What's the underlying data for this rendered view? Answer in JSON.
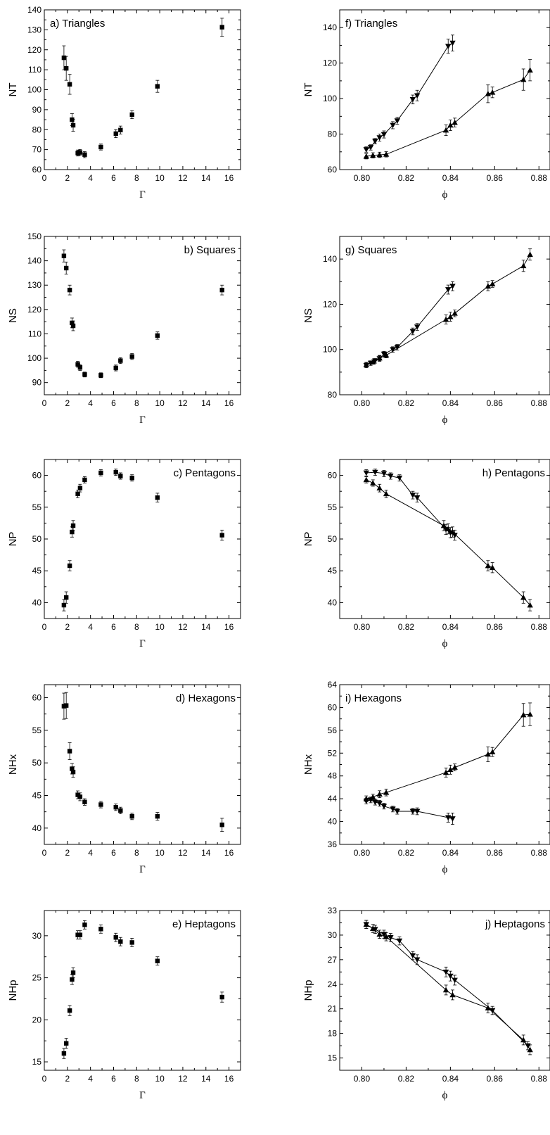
{
  "chart_data": [
    {
      "id": "a",
      "type": "scatter",
      "title": "a) Triangles",
      "xlabel": "Γ",
      "ylabel": "NT",
      "xlim": [
        0,
        17
      ],
      "ylim": [
        60,
        140
      ],
      "xticks": [
        0,
        2,
        4,
        6,
        8,
        10,
        12,
        14,
        16
      ],
      "yticks": [
        60,
        70,
        80,
        90,
        100,
        110,
        120,
        130,
        140
      ],
      "title_pos": "top-left",
      "marker": "square",
      "series": [
        {
          "x": [
            1.7,
            1.9,
            2.2,
            2.4,
            2.5,
            2.9,
            3.1,
            3.5,
            4.9,
            6.2,
            6.6,
            7.6,
            9.8,
            15.4
          ],
          "y": [
            116,
            110.7,
            102.7,
            85,
            82.2,
            68.3,
            68.6,
            67.5,
            71.3,
            78,
            79.8,
            87.5,
            101.7,
            131.3
          ],
          "err": [
            6,
            6,
            5,
            3,
            3,
            1.5,
            1.5,
            1.5,
            1.5,
            2,
            2,
            2,
            3,
            4.5
          ]
        }
      ]
    },
    {
      "id": "f",
      "type": "line",
      "title": "f) Triangles",
      "xlabel": "ϕ",
      "ylabel": "NT",
      "xlim": [
        0.79,
        0.885
      ],
      "ylim": [
        60,
        150
      ],
      "xticks": [
        0.8,
        0.82,
        0.84,
        0.86,
        0.88
      ],
      "yticks": [
        60,
        80,
        100,
        120,
        140
      ],
      "title_pos": "top-left",
      "series": [
        {
          "marker": "tri-down",
          "x": [
            0.802,
            0.804,
            0.806,
            0.808,
            0.81,
            0.814,
            0.816,
            0.823,
            0.825,
            0.839,
            0.841
          ],
          "y": [
            71.3,
            72.5,
            76,
            78,
            79.8,
            85,
            87.5,
            99.5,
            101.7,
            129.5,
            131.3
          ],
          "err": [
            1.5,
            1.5,
            1.5,
            2,
            2,
            2,
            2,
            2.5,
            3,
            4,
            4.5
          ]
        },
        {
          "marker": "tri-up",
          "x": [
            0.802,
            0.805,
            0.808,
            0.811,
            0.838,
            0.84,
            0.842,
            0.857,
            0.859,
            0.873,
            0.876
          ],
          "y": [
            67.5,
            68,
            68.3,
            68.6,
            82.2,
            85,
            86.5,
            102.7,
            103.5,
            110.7,
            116
          ],
          "err": [
            1.5,
            1.5,
            1.5,
            1.5,
            3,
            3,
            2.5,
            5,
            3,
            6,
            6
          ]
        }
      ]
    },
    {
      "id": "b",
      "type": "scatter",
      "title": "b) Squares",
      "xlabel": "Γ",
      "ylabel": "NS",
      "xlim": [
        0,
        17
      ],
      "ylim": [
        85,
        150
      ],
      "xticks": [
        0,
        2,
        4,
        6,
        8,
        10,
        12,
        14,
        16
      ],
      "yticks": [
        90,
        100,
        110,
        120,
        130,
        140,
        150
      ],
      "title_pos": "top-right",
      "marker": "square",
      "series": [
        {
          "x": [
            1.7,
            1.9,
            2.2,
            2.4,
            2.5,
            2.9,
            3.1,
            3.5,
            4.9,
            6.2,
            6.6,
            7.6,
            9.8,
            15.4
          ],
          "y": [
            142,
            137,
            128,
            114.5,
            113.3,
            97.5,
            96.2,
            93.3,
            93,
            96,
            99,
            100.7,
            109.3,
            128
          ],
          "err": [
            2.5,
            2.5,
            2,
            2,
            2,
            1.2,
            1.2,
            1,
            1,
            1.2,
            1.2,
            1.2,
            1.5,
            2
          ]
        }
      ]
    },
    {
      "id": "g",
      "type": "line",
      "title": "g) Squares",
      "xlabel": "ϕ",
      "ylabel": "NS",
      "xlim": [
        0.79,
        0.885
      ],
      "ylim": [
        80,
        150
      ],
      "xticks": [
        0.8,
        0.82,
        0.84,
        0.86,
        0.88
      ],
      "yticks": [
        80,
        100,
        120,
        140
      ],
      "title_pos": "top-left",
      "series": [
        {
          "marker": "tri-down",
          "x": [
            0.802,
            0.804,
            0.806,
            0.808,
            0.81,
            0.814,
            0.816,
            0.823,
            0.825,
            0.839,
            0.841
          ],
          "y": [
            93,
            94,
            95,
            96,
            98,
            100,
            101,
            108,
            110,
            126.5,
            128
          ],
          "err": [
            1,
            1,
            1,
            1.2,
            1.2,
            1.2,
            1.2,
            1.5,
            1.5,
            2,
            2
          ]
        },
        {
          "marker": "tri-up",
          "x": [
            0.802,
            0.805,
            0.808,
            0.811,
            0.838,
            0.84,
            0.842,
            0.857,
            0.859,
            0.873,
            0.876
          ],
          "y": [
            93.3,
            94.5,
            96.2,
            97.5,
            113.3,
            114.5,
            116,
            128,
            129,
            137,
            142
          ],
          "err": [
            1,
            1,
            1.2,
            1.2,
            2,
            2,
            1.5,
            2,
            1.5,
            2.5,
            2.5
          ]
        }
      ]
    },
    {
      "id": "c",
      "type": "scatter",
      "title": "c) Pentagons",
      "xlabel": "Γ",
      "ylabel": "NP",
      "xlim": [
        0,
        17
      ],
      "ylim": [
        37.5,
        62.5
      ],
      "xticks": [
        0,
        2,
        4,
        6,
        8,
        10,
        12,
        14,
        16
      ],
      "yticks": [
        40,
        45,
        50,
        55,
        60
      ],
      "title_pos": "top-right",
      "marker": "square",
      "series": [
        {
          "x": [
            1.7,
            1.9,
            2.2,
            2.4,
            2.5,
            2.9,
            3.1,
            3.5,
            4.9,
            6.2,
            6.6,
            7.6,
            9.8,
            15.4
          ],
          "y": [
            39.6,
            40.8,
            45.8,
            51.1,
            52.1,
            57.1,
            58,
            59.3,
            60.4,
            60.5,
            59.9,
            59.6,
            56.5,
            50.6
          ],
          "err": [
            0.9,
            0.9,
            0.8,
            0.8,
            0.8,
            0.6,
            0.6,
            0.5,
            0.5,
            0.5,
            0.5,
            0.5,
            0.7,
            0.8
          ]
        }
      ]
    },
    {
      "id": "h",
      "type": "line",
      "title": "h) Pentagons",
      "xlabel": "ϕ",
      "ylabel": "NP",
      "xlim": [
        0.79,
        0.885
      ],
      "ylim": [
        37.5,
        62.5
      ],
      "xticks": [
        0.8,
        0.82,
        0.84,
        0.86,
        0.88
      ],
      "yticks": [
        40,
        45,
        50,
        55,
        60
      ],
      "title_pos": "top-right",
      "series": [
        {
          "marker": "tri-down",
          "x": [
            0.802,
            0.806,
            0.81,
            0.813,
            0.817,
            0.823,
            0.825,
            0.838,
            0.84,
            0.842
          ],
          "y": [
            60.4,
            60.5,
            60.3,
            59.9,
            59.6,
            56.9,
            56.5,
            51.5,
            51.0,
            50.6
          ],
          "err": [
            0.5,
            0.5,
            0.5,
            0.5,
            0.5,
            0.6,
            0.7,
            0.8,
            0.8,
            0.8
          ]
        },
        {
          "marker": "tri-up",
          "x": [
            0.802,
            0.805,
            0.808,
            0.811,
            0.837,
            0.839,
            0.841,
            0.857,
            0.859,
            0.873,
            0.876
          ],
          "y": [
            59.3,
            58.8,
            58.0,
            57.1,
            52.1,
            51.6,
            51.1,
            45.8,
            45.5,
            40.8,
            39.6
          ],
          "err": [
            0.5,
            0.5,
            0.6,
            0.6,
            0.8,
            0.8,
            0.8,
            0.8,
            0.8,
            0.9,
            0.9
          ]
        }
      ]
    },
    {
      "id": "d",
      "type": "scatter",
      "title": "d) Hexagons",
      "xlabel": "Γ",
      "ylabel": "NHx",
      "xlim": [
        0,
        17
      ],
      "ylim": [
        37.5,
        62
      ],
      "xticks": [
        0,
        2,
        4,
        6,
        8,
        10,
        12,
        14,
        16
      ],
      "yticks": [
        40,
        45,
        50,
        55,
        60
      ],
      "title_pos": "top-right",
      "marker": "square",
      "series": [
        {
          "x": [
            1.7,
            1.9,
            2.2,
            2.4,
            2.5,
            2.9,
            3.1,
            3.5,
            4.9,
            6.2,
            6.6,
            7.6,
            9.8,
            15.4
          ],
          "y": [
            58.7,
            58.8,
            51.8,
            49.1,
            48.6,
            45.1,
            44.8,
            44.0,
            43.6,
            43.2,
            42.7,
            41.8,
            41.8,
            40.5
          ],
          "err": [
            2,
            2,
            1.3,
            0.8,
            0.8,
            0.6,
            0.6,
            0.5,
            0.5,
            0.5,
            0.5,
            0.5,
            0.6,
            1
          ]
        }
      ]
    },
    {
      "id": "i",
      "type": "line",
      "title": "i) Hexagons",
      "xlabel": "ϕ",
      "ylabel": "NHx",
      "xlim": [
        0.79,
        0.885
      ],
      "ylim": [
        36,
        64
      ],
      "xticks": [
        0.8,
        0.82,
        0.84,
        0.86,
        0.88
      ],
      "yticks": [
        36,
        40,
        44,
        48,
        52,
        56,
        60,
        64
      ],
      "title_pos": "top-left",
      "series": [
        {
          "marker": "tri-down",
          "x": [
            0.802,
            0.804,
            0.806,
            0.808,
            0.81,
            0.814,
            0.816,
            0.823,
            0.825,
            0.839,
            0.841
          ],
          "y": [
            43.6,
            43.8,
            43.4,
            43.2,
            42.7,
            42.2,
            41.8,
            41.8,
            41.8,
            40.7,
            40.5
          ],
          "err": [
            0.5,
            0.5,
            0.5,
            0.5,
            0.5,
            0.5,
            0.5,
            0.5,
            0.6,
            0.8,
            1
          ]
        },
        {
          "marker": "tri-up",
          "x": [
            0.802,
            0.805,
            0.808,
            0.811,
            0.838,
            0.84,
            0.842,
            0.857,
            0.859,
            0.873,
            0.876
          ],
          "y": [
            44.0,
            44.3,
            44.8,
            45.1,
            48.6,
            49.1,
            49.5,
            51.8,
            52.2,
            58.7,
            58.8
          ],
          "err": [
            0.5,
            0.5,
            0.6,
            0.6,
            0.8,
            0.8,
            0.6,
            1.3,
            0.8,
            2,
            2
          ]
        }
      ]
    },
    {
      "id": "e",
      "type": "scatter",
      "title": "e) Heptagons",
      "xlabel": "Γ",
      "ylabel": "NHp",
      "xlim": [
        0,
        17
      ],
      "ylim": [
        14,
        33
      ],
      "xticks": [
        0,
        2,
        4,
        6,
        8,
        10,
        12,
        14,
        16
      ],
      "yticks": [
        15,
        20,
        25,
        30
      ],
      "title_pos": "top-right",
      "marker": "square",
      "series": [
        {
          "x": [
            1.7,
            1.9,
            2.2,
            2.4,
            2.5,
            2.9,
            3.1,
            3.5,
            4.9,
            6.2,
            6.6,
            7.6,
            9.8,
            15.4
          ],
          "y": [
            16.0,
            17.2,
            21.1,
            24.8,
            25.6,
            30.1,
            30.1,
            31.3,
            30.8,
            29.8,
            29.3,
            29.2,
            27.0,
            22.7
          ],
          "err": [
            0.6,
            0.6,
            0.6,
            0.6,
            0.6,
            0.5,
            0.5,
            0.5,
            0.5,
            0.5,
            0.5,
            0.5,
            0.5,
            0.6
          ]
        }
      ]
    },
    {
      "id": "j",
      "type": "line",
      "title": "j) Heptagons",
      "xlabel": "ϕ",
      "ylabel": "NHp",
      "xlim": [
        0.79,
        0.885
      ],
      "ylim": [
        13.5,
        33
      ],
      "xticks": [
        0.8,
        0.82,
        0.84,
        0.86,
        0.88
      ],
      "yticks": [
        15,
        18,
        21,
        24,
        27,
        30,
        33
      ],
      "title_pos": "top-right",
      "series": [
        {
          "marker": "tri-down",
          "x": [
            0.802,
            0.806,
            0.81,
            0.813,
            0.817,
            0.823,
            0.825,
            0.838,
            0.84,
            0.842,
            0.859,
            0.875
          ],
          "y": [
            31.3,
            30.7,
            30.1,
            29.7,
            29.3,
            27.5,
            27.0,
            25.5,
            25.0,
            24.5,
            20.8,
            16.5
          ],
          "err": [
            0.5,
            0.5,
            0.5,
            0.5,
            0.5,
            0.5,
            0.6,
            0.6,
            0.6,
            0.6,
            0.5,
            0.5
          ]
        },
        {
          "marker": "tri-up",
          "x": [
            0.802,
            0.805,
            0.808,
            0.811,
            0.838,
            0.841,
            0.857,
            0.873,
            0.876
          ],
          "y": [
            31.3,
            30.8,
            30.1,
            29.8,
            23.3,
            22.7,
            21.1,
            17.2,
            16.0
          ],
          "err": [
            0.5,
            0.5,
            0.5,
            0.5,
            0.6,
            0.6,
            0.6,
            0.6,
            0.6
          ]
        }
      ]
    }
  ]
}
